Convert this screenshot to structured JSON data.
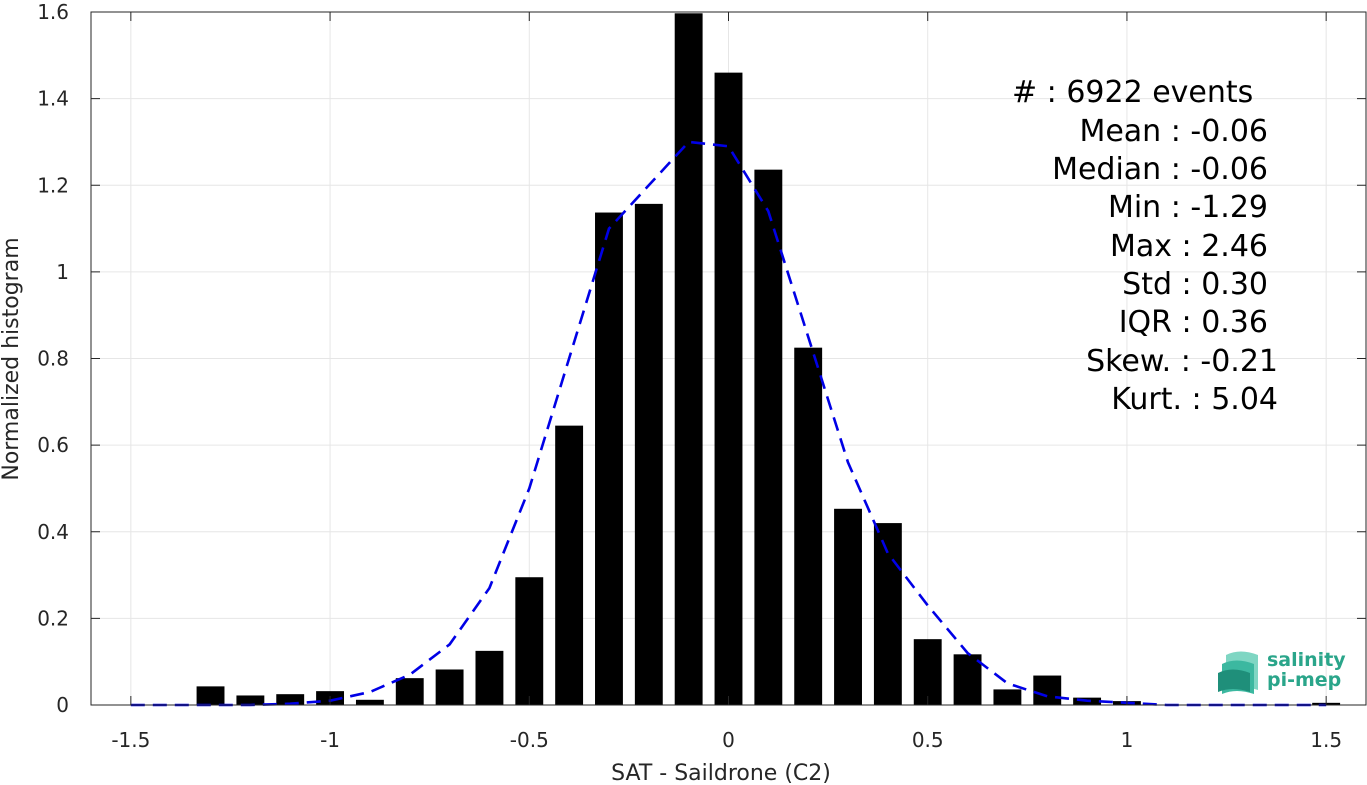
{
  "chart_data": {
    "type": "bar",
    "xlabel": "SAT - Saildrone (C2)",
    "ylabel": "Normalized histogram",
    "xlim": [
      -1.6,
      1.6
    ],
    "ylim": [
      0,
      1.6
    ],
    "xticks": [
      -1.5,
      -1,
      -0.5,
      0,
      0.5,
      1,
      1.5
    ],
    "xtick_labels": [
      "-1.5",
      "-1",
      "-0.5",
      "0",
      "0.5",
      "1",
      "1.5"
    ],
    "yticks": [
      0,
      0.2,
      0.4,
      0.6,
      0.8,
      1,
      1.2,
      1.4,
      1.6
    ],
    "ytick_labels": [
      "0",
      "0.2",
      "0.4",
      "0.6",
      "0.8",
      "1",
      "1.2",
      "1.4",
      "1.6"
    ],
    "grid": true,
    "bar_width": 0.07,
    "bars": {
      "x": [
        -1.3,
        -1.2,
        -1.1,
        -1.0,
        -0.9,
        -0.8,
        -0.7,
        -0.6,
        -0.5,
        -0.4,
        -0.3,
        -0.2,
        -0.1,
        0.0,
        0.1,
        0.2,
        0.3,
        0.4,
        0.5,
        0.6,
        0.7,
        0.8,
        0.9,
        1.0,
        1.5
      ],
      "values": [
        0.043,
        0.022,
        0.025,
        0.032,
        0.012,
        0.062,
        0.082,
        0.125,
        0.295,
        0.645,
        1.137,
        1.157,
        1.597,
        1.46,
        1.236,
        0.825,
        0.453,
        0.42,
        0.152,
        0.117,
        0.036,
        0.068,
        0.017,
        0.009,
        0.005
      ],
      "color": "#000000"
    },
    "fit_curve": {
      "style": "dashed",
      "color": "#0000e6",
      "x": [
        -1.5,
        -1.4,
        -1.3,
        -1.2,
        -1.1,
        -1.0,
        -0.9,
        -0.8,
        -0.7,
        -0.6,
        -0.5,
        -0.4,
        -0.3,
        -0.2,
        -0.1,
        0.0,
        0.1,
        0.2,
        0.3,
        0.4,
        0.5,
        0.6,
        0.7,
        0.8,
        0.9,
        1.0,
        1.1,
        1.2,
        1.3,
        1.4,
        1.5
      ],
      "y": [
        0.0,
        0.0,
        0.0,
        0.0,
        0.003,
        0.01,
        0.03,
        0.07,
        0.14,
        0.27,
        0.5,
        0.8,
        1.1,
        1.2,
        1.3,
        1.29,
        1.14,
        0.85,
        0.56,
        0.35,
        0.23,
        0.12,
        0.05,
        0.02,
        0.01,
        0.005,
        0.0,
        0.0,
        0.0,
        0.0,
        0.0
      ]
    },
    "stats": {
      "lines": [
        "#  : 6922 events",
        "Mean : -0.06",
        "Median : -0.06",
        "Min : -1.29",
        "Max : 2.46",
        "Std : 0.30",
        "IQR : 0.36",
        "Skew. : -0.21",
        "Kurt. : 5.04"
      ]
    }
  },
  "logo": {
    "line1": "salinity",
    "line2": "pi-mep",
    "color": "#2aa58a"
  }
}
